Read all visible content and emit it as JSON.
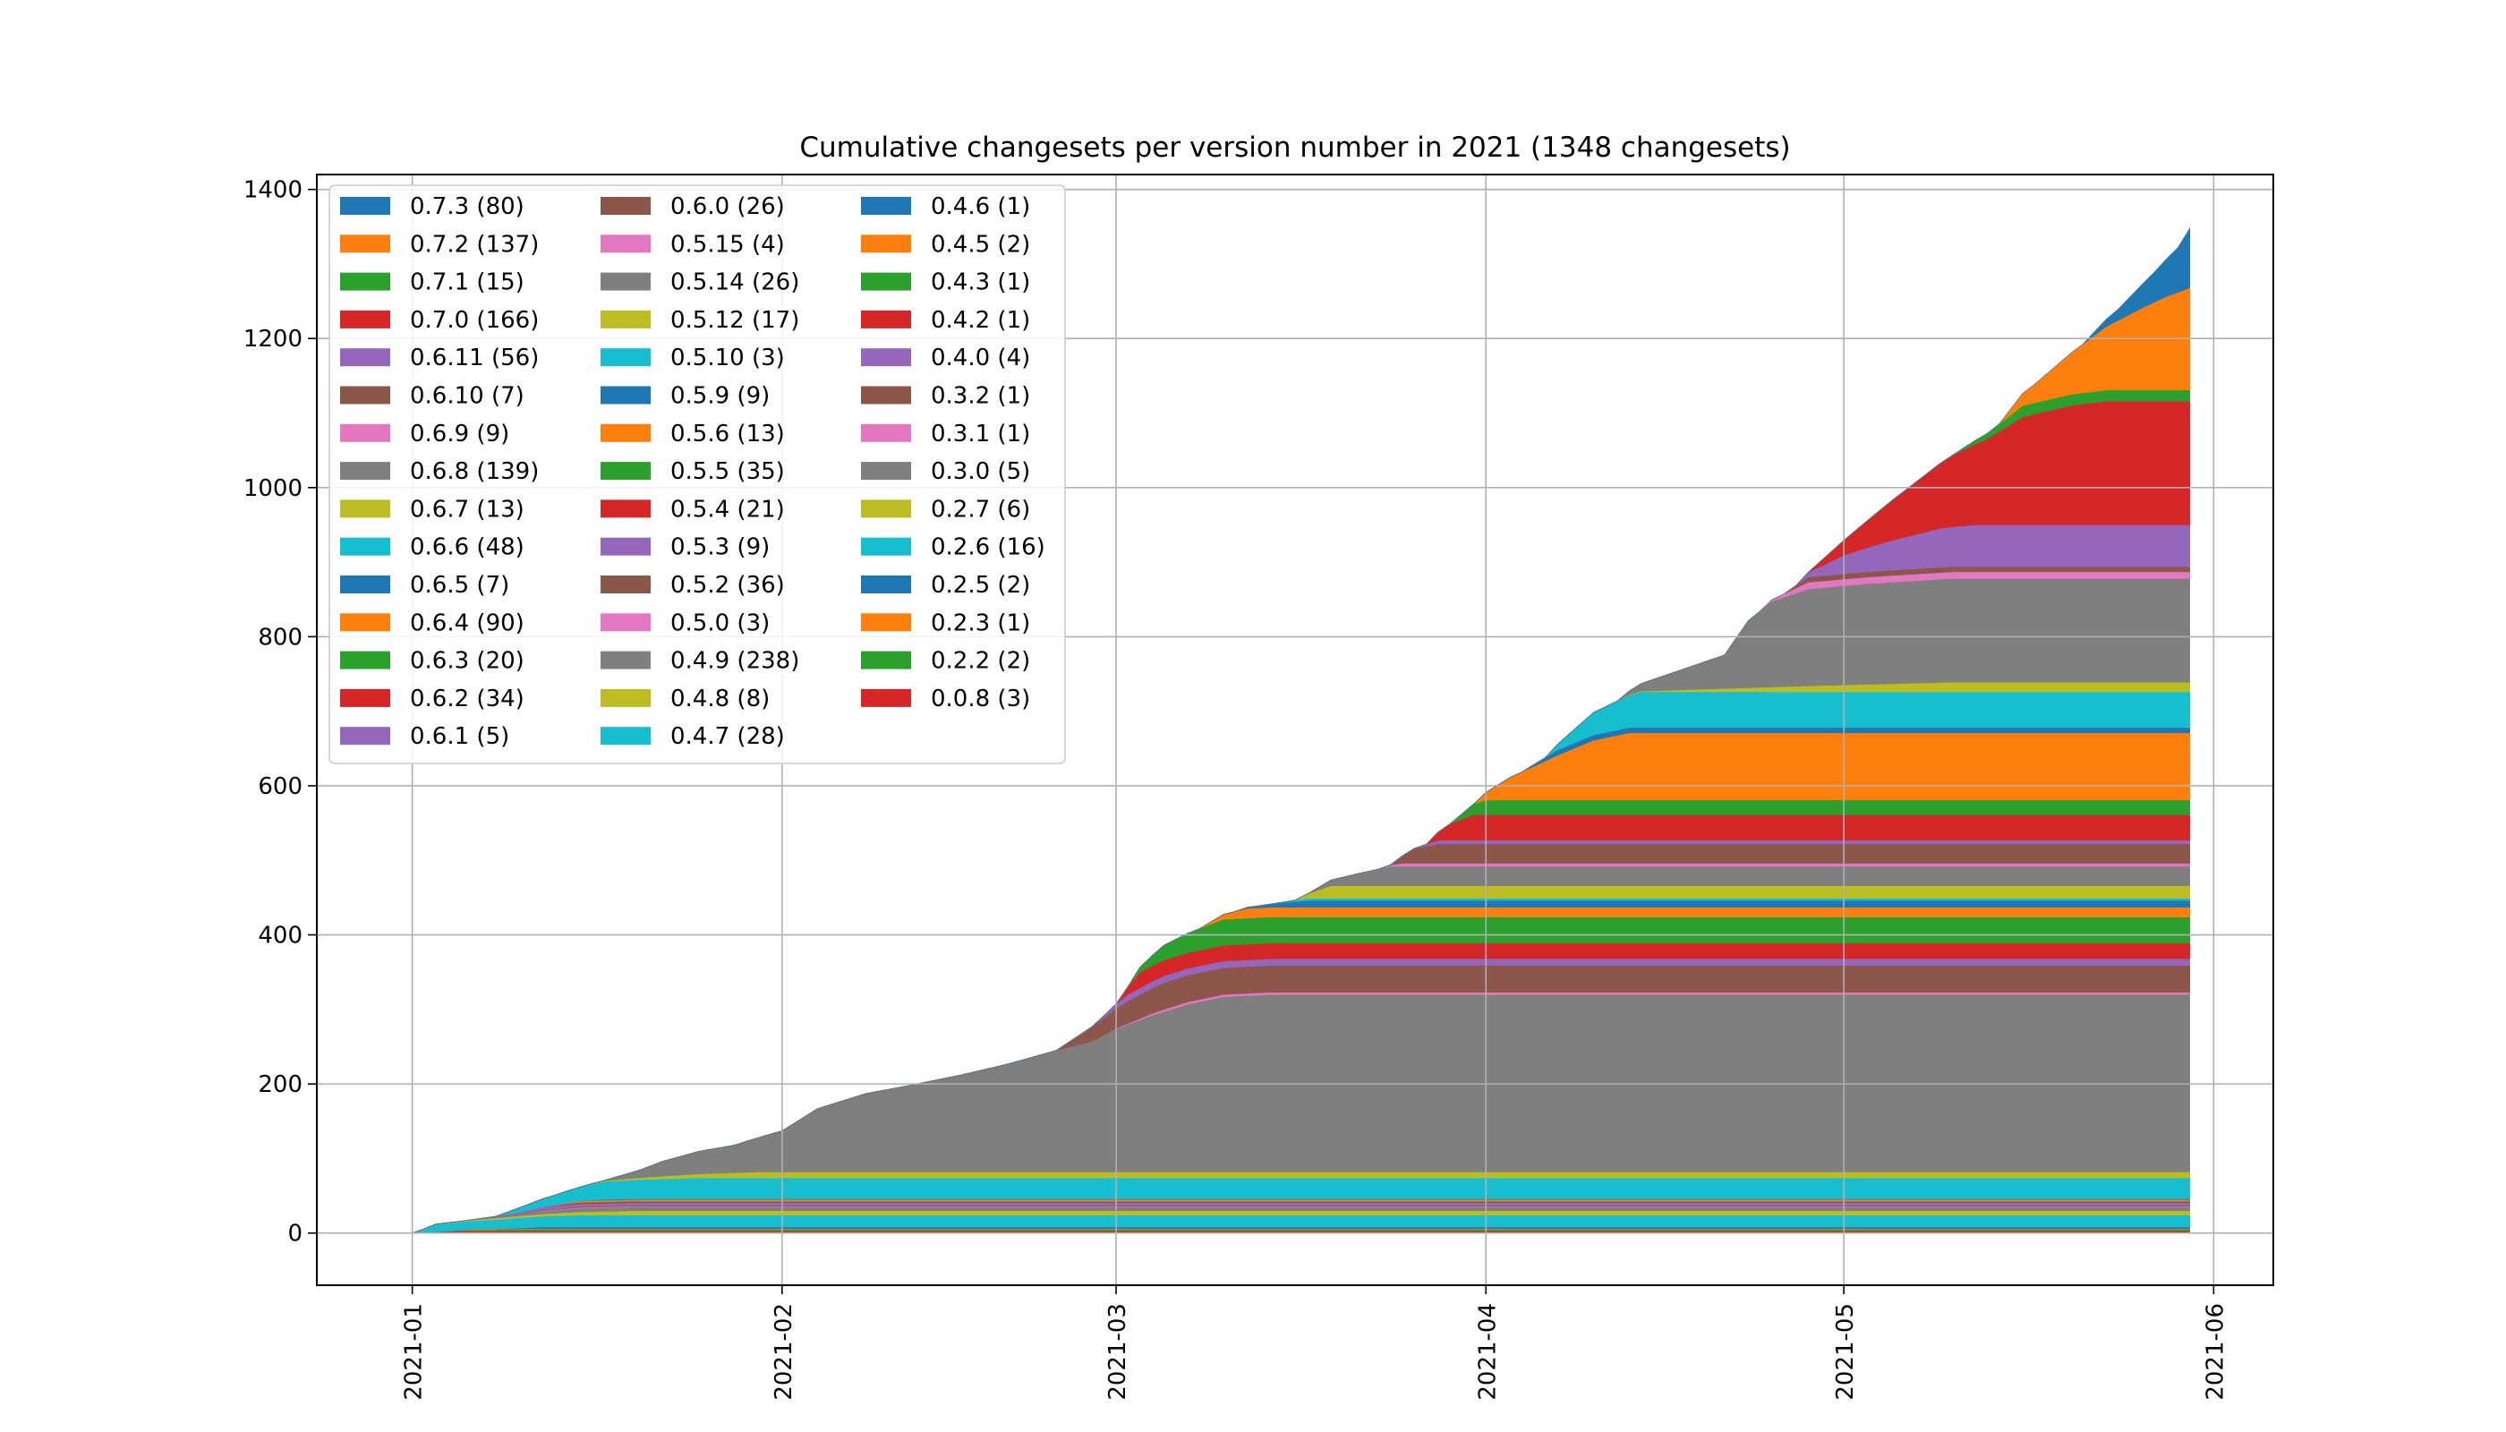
{
  "chart_data": {
    "type": "area",
    "stacked": true,
    "title": "Cumulative changesets per version number in 2021 (1348 changesets)",
    "xlabel": "",
    "ylabel": "",
    "x_ticks": [
      "2021-01",
      "2021-02",
      "2021-03",
      "2021-04",
      "2021-05",
      "2021-06"
    ],
    "y_ticks": [
      0,
      200,
      400,
      600,
      800,
      1000,
      1200,
      1400
    ],
    "xlim": [
      "2020-12-24",
      "2021-06-06"
    ],
    "ylim": [
      -70,
      1420
    ],
    "grid": true,
    "legend_position": "top-left",
    "legend_columns": 3,
    "legend_order": [
      "0.7.3 (80)",
      "0.7.2 (137)",
      "0.7.1 (15)",
      "0.7.0 (166)",
      "0.6.11 (56)",
      "0.6.10 (7)",
      "0.6.9 (9)",
      "0.6.8 (139)",
      "0.6.7 (13)",
      "0.6.6 (48)",
      "0.6.5 (7)",
      "0.6.4 (90)",
      "0.6.3 (20)",
      "0.6.2 (34)",
      "0.6.1 (5)",
      "0.6.0 (26)",
      "0.5.15 (4)",
      "0.5.14 (26)",
      "0.5.12 (17)",
      "0.5.10 (3)",
      "0.5.9 (9)",
      "0.5.6 (13)",
      "0.5.5 (35)",
      "0.5.4 (21)",
      "0.5.3 (9)",
      "0.5.2 (36)",
      "0.5.0 (3)",
      "0.4.9 (238)",
      "0.4.8 (8)",
      "0.4.7 (28)",
      "0.4.6 (1)",
      "0.4.5 (2)",
      "0.4.3 (1)",
      "0.4.2 (1)",
      "0.4.0 (4)",
      "0.3.2 (1)",
      "0.3.1 (1)",
      "0.3.0 (5)",
      "0.2.7 (6)",
      "0.2.6 (16)",
      "0.2.5 (2)",
      "0.2.3 (1)",
      "0.2.2 (2)",
      "0.0.8 (3)"
    ],
    "series": [
      {
        "name": "0.0.8 (3)",
        "color": "#d62728",
        "end": 3,
        "points": [
          [
            "2021-01-01",
            0
          ],
          [
            "2021-01-05",
            3
          ]
        ]
      },
      {
        "name": "0.2.2 (2)",
        "color": "#2ca02c",
        "end": 2,
        "points": [
          [
            "2021-01-02",
            0
          ],
          [
            "2021-01-10",
            2
          ]
        ]
      },
      {
        "name": "0.2.3 (1)",
        "color": "#ff7f0e",
        "end": 1,
        "points": [
          [
            "2021-01-05",
            0
          ],
          [
            "2021-01-06",
            1
          ]
        ]
      },
      {
        "name": "0.2.5 (2)",
        "color": "#1f77b4",
        "end": 2,
        "points": [
          [
            "2021-01-08",
            0
          ],
          [
            "2021-01-12",
            2
          ]
        ]
      },
      {
        "name": "0.2.6 (16)",
        "color": "#17becf",
        "end": 16,
        "points": [
          [
            "2021-01-01",
            0
          ],
          [
            "2021-01-03",
            10
          ],
          [
            "2021-01-15",
            16
          ]
        ]
      },
      {
        "name": "0.2.7 (6)",
        "color": "#bcbd22",
        "end": 6,
        "points": [
          [
            "2021-01-02",
            0
          ],
          [
            "2021-01-20",
            6
          ]
        ]
      },
      {
        "name": "0.3.0 (5)",
        "color": "#7f7f7f",
        "end": 5,
        "points": [
          [
            "2021-01-06",
            0
          ],
          [
            "2021-01-15",
            5
          ]
        ]
      },
      {
        "name": "0.3.1 (1)",
        "color": "#e377c2",
        "end": 1,
        "points": [
          [
            "2021-01-10",
            0
          ],
          [
            "2021-01-12",
            1
          ]
        ]
      },
      {
        "name": "0.3.2 (1)",
        "color": "#8c564b",
        "end": 1,
        "points": [
          [
            "2021-01-10",
            0
          ],
          [
            "2021-01-12",
            1
          ]
        ]
      },
      {
        "name": "0.4.0 (4)",
        "color": "#9467bd",
        "end": 4,
        "points": [
          [
            "2021-01-06",
            0
          ],
          [
            "2021-01-12",
            4
          ]
        ]
      },
      {
        "name": "0.4.2 (1)",
        "color": "#d62728",
        "end": 1,
        "points": [
          [
            "2021-01-12",
            0
          ],
          [
            "2021-01-14",
            1
          ]
        ]
      },
      {
        "name": "0.4.3 (1)",
        "color": "#2ca02c",
        "end": 1,
        "points": [
          [
            "2021-01-13",
            0
          ],
          [
            "2021-01-15",
            1
          ]
        ]
      },
      {
        "name": "0.4.5 (2)",
        "color": "#ff7f0e",
        "end": 2,
        "points": [
          [
            "2021-01-12",
            0
          ],
          [
            "2021-01-16",
            2
          ]
        ]
      },
      {
        "name": "0.4.6 (1)",
        "color": "#1f77b4",
        "end": 1,
        "points": [
          [
            "2021-01-15",
            0
          ],
          [
            "2021-01-17",
            1
          ]
        ]
      },
      {
        "name": "0.4.7 (28)",
        "color": "#17becf",
        "end": 28,
        "points": [
          [
            "2021-01-08",
            0
          ],
          [
            "2021-01-10",
            6
          ],
          [
            "2021-01-14",
            16
          ],
          [
            "2021-01-17",
            24
          ],
          [
            "2021-01-25",
            28
          ]
        ]
      },
      {
        "name": "0.4.8 (8)",
        "color": "#bcbd22",
        "end": 8,
        "points": [
          [
            "2021-01-15",
            0
          ],
          [
            "2021-01-30",
            8
          ]
        ]
      },
      {
        "name": "0.4.9 (238)",
        "color": "#7f7f7f",
        "end": 238,
        "points": [
          [
            "2021-01-17",
            0
          ],
          [
            "2021-01-20",
            10
          ],
          [
            "2021-01-22",
            20
          ],
          [
            "2021-01-25",
            30
          ],
          [
            "2021-01-28",
            37
          ],
          [
            "2021-02-01",
            55
          ],
          [
            "2021-02-04",
            85
          ],
          [
            "2021-02-08",
            105
          ],
          [
            "2021-02-12",
            117
          ],
          [
            "2021-02-16",
            130
          ],
          [
            "2021-02-20",
            145
          ],
          [
            "2021-02-24",
            163
          ],
          [
            "2021-02-27",
            175
          ],
          [
            "2021-03-01",
            192
          ],
          [
            "2021-03-04",
            210
          ],
          [
            "2021-03-07",
            225
          ],
          [
            "2021-03-10",
            235
          ],
          [
            "2021-03-14",
            238
          ]
        ]
      },
      {
        "name": "0.5.0 (3)",
        "color": "#e377c2",
        "end": 3,
        "points": [
          [
            "2021-02-28",
            0
          ],
          [
            "2021-03-05",
            3
          ]
        ]
      },
      {
        "name": "0.5.2 (36)",
        "color": "#8c564b",
        "end": 36,
        "points": [
          [
            "2021-02-24",
            0
          ],
          [
            "2021-02-27",
            20
          ],
          [
            "2021-03-02",
            30
          ],
          [
            "2021-03-05",
            36
          ]
        ]
      },
      {
        "name": "0.5.3 (9)",
        "color": "#9467bd",
        "end": 9,
        "points": [
          [
            "2021-02-27",
            0
          ],
          [
            "2021-03-02",
            9
          ]
        ]
      },
      {
        "name": "0.5.4 (21)",
        "color": "#d62728",
        "end": 21,
        "points": [
          [
            "2021-03-01",
            0
          ],
          [
            "2021-03-03",
            21
          ]
        ]
      },
      {
        "name": "0.5.5 (35)",
        "color": "#2ca02c",
        "end": 35,
        "points": [
          [
            "2021-03-02",
            0
          ],
          [
            "2021-03-05",
            20
          ],
          [
            "2021-03-10",
            35
          ]
        ]
      },
      {
        "name": "0.5.6 (13)",
        "color": "#ff7f0e",
        "end": 13,
        "points": [
          [
            "2021-03-08",
            0
          ],
          [
            "2021-03-12",
            13
          ]
        ]
      },
      {
        "name": "0.5.9 (9)",
        "color": "#1f77b4",
        "end": 9,
        "points": [
          [
            "2021-03-11",
            0
          ],
          [
            "2021-03-17",
            9
          ]
        ]
      },
      {
        "name": "0.5.10 (3)",
        "color": "#17becf",
        "end": 3,
        "points": [
          [
            "2021-03-14",
            0
          ],
          [
            "2021-03-17",
            3
          ]
        ]
      },
      {
        "name": "0.5.12 (17)",
        "color": "#bcbd22",
        "end": 17,
        "points": [
          [
            "2021-03-16",
            0
          ],
          [
            "2021-03-19",
            17
          ]
        ]
      },
      {
        "name": "0.5.14 (26)",
        "color": "#7f7f7f",
        "end": 26,
        "points": [
          [
            "2021-03-17",
            0
          ],
          [
            "2021-03-21",
            15
          ],
          [
            "2021-03-24",
            26
          ]
        ]
      },
      {
        "name": "0.5.15 (4)",
        "color": "#e377c2",
        "end": 4,
        "points": [
          [
            "2021-03-23",
            0
          ],
          [
            "2021-03-25",
            4
          ]
        ]
      },
      {
        "name": "0.6.0 (26)",
        "color": "#8c564b",
        "end": 26,
        "points": [
          [
            "2021-03-24",
            0
          ],
          [
            "2021-03-26",
            20
          ],
          [
            "2021-03-28",
            26
          ]
        ]
      },
      {
        "name": "0.6.1 (5)",
        "color": "#9467bd",
        "end": 5,
        "points": [
          [
            "2021-03-26",
            0
          ],
          [
            "2021-03-28",
            5
          ]
        ]
      },
      {
        "name": "0.6.2 (34)",
        "color": "#d62728",
        "end": 34,
        "points": [
          [
            "2021-03-27",
            0
          ],
          [
            "2021-03-29",
            22
          ],
          [
            "2021-03-31",
            34
          ]
        ]
      },
      {
        "name": "0.6.3 (20)",
        "color": "#2ca02c",
        "end": 20,
        "points": [
          [
            "2021-03-29",
            0
          ],
          [
            "2021-03-31",
            15
          ],
          [
            "2021-04-01",
            20
          ]
        ]
      },
      {
        "name": "0.6.4 (90)",
        "color": "#ff7f0e",
        "end": 90,
        "points": [
          [
            "2021-03-31",
            0
          ],
          [
            "2021-04-03",
            30
          ],
          [
            "2021-04-07",
            60
          ],
          [
            "2021-04-10",
            80
          ],
          [
            "2021-04-13",
            90
          ]
        ]
      },
      {
        "name": "0.6.5 (7)",
        "color": "#1f77b4",
        "end": 7,
        "points": [
          [
            "2021-04-04",
            0
          ],
          [
            "2021-04-07",
            7
          ]
        ]
      },
      {
        "name": "0.6.6 (48)",
        "color": "#17becf",
        "end": 48,
        "points": [
          [
            "2021-04-06",
            0
          ],
          [
            "2021-04-10",
            30
          ],
          [
            "2021-04-14",
            48
          ]
        ]
      },
      {
        "name": "0.6.7 (13)",
        "color": "#bcbd22",
        "end": 13,
        "points": [
          [
            "2021-04-12",
            0
          ],
          [
            "2021-04-28",
            8
          ],
          [
            "2021-05-10",
            13
          ]
        ]
      },
      {
        "name": "0.6.8 (139)",
        "color": "#7f7f7f",
        "end": 139,
        "points": [
          [
            "2021-04-12",
            0
          ],
          [
            "2021-04-15",
            15
          ],
          [
            "2021-04-18",
            30
          ],
          [
            "2021-04-21",
            45
          ],
          [
            "2021-04-23",
            90
          ],
          [
            "2021-04-25",
            115
          ],
          [
            "2021-04-28",
            130
          ],
          [
            "2021-05-03",
            135
          ],
          [
            "2021-05-10",
            139
          ]
        ]
      },
      {
        "name": "0.6.9 (9)",
        "color": "#e377c2",
        "end": 9,
        "points": [
          [
            "2021-04-24",
            0
          ],
          [
            "2021-04-28",
            9
          ]
        ]
      },
      {
        "name": "0.6.10 (7)",
        "color": "#8c564b",
        "end": 7,
        "points": [
          [
            "2021-04-26",
            0
          ],
          [
            "2021-04-28",
            7
          ]
        ]
      },
      {
        "name": "0.6.11 (56)",
        "color": "#9467bd",
        "end": 56,
        "points": [
          [
            "2021-04-27",
            0
          ],
          [
            "2021-05-01",
            25
          ],
          [
            "2021-05-05",
            40
          ],
          [
            "2021-05-09",
            52
          ],
          [
            "2021-05-12",
            56
          ]
        ]
      },
      {
        "name": "0.7.0 (166)",
        "color": "#d62728",
        "end": 166,
        "points": [
          [
            "2021-04-28",
            0
          ],
          [
            "2021-05-01",
            20
          ],
          [
            "2021-05-04",
            45
          ],
          [
            "2021-05-07",
            70
          ],
          [
            "2021-05-10",
            95
          ],
          [
            "2021-05-13",
            115
          ],
          [
            "2021-05-16",
            145
          ],
          [
            "2021-05-20",
            160
          ],
          [
            "2021-05-23",
            166
          ]
        ]
      },
      {
        "name": "0.7.1 (15)",
        "color": "#2ca02c",
        "end": 15,
        "points": [
          [
            "2021-05-10",
            0
          ],
          [
            "2021-05-16",
            15
          ]
        ]
      },
      {
        "name": "0.7.2 (137)",
        "color": "#ff7f0e",
        "end": 137,
        "points": [
          [
            "2021-05-14",
            0
          ],
          [
            "2021-05-17",
            25
          ],
          [
            "2021-05-20",
            55
          ],
          [
            "2021-05-23",
            85
          ],
          [
            "2021-05-26",
            110
          ],
          [
            "2021-05-28",
            125
          ],
          [
            "2021-05-30",
            137
          ]
        ]
      },
      {
        "name": "0.7.3 (80)",
        "color": "#1f77b4",
        "end": 80,
        "points": [
          [
            "2021-05-21",
            0
          ],
          [
            "2021-05-24",
            15
          ],
          [
            "2021-05-27",
            40
          ],
          [
            "2021-05-29",
            60
          ],
          [
            "2021-05-30",
            80
          ]
        ]
      }
    ],
    "last_date": "2021-05-30"
  }
}
